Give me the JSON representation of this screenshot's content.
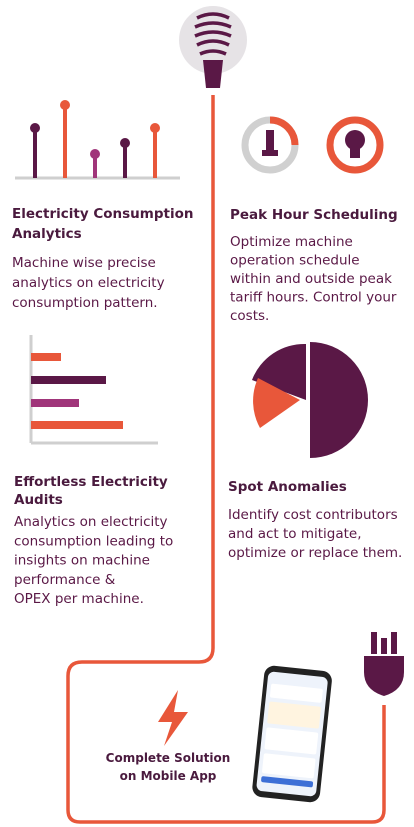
{
  "features": [
    {
      "title": [
        "Electricity Consumption",
        "Analytics"
      ],
      "description": [
        "Machine wise precise",
        "analytics on electricity",
        "consumption pattern."
      ]
    },
    {
      "title": [
        "Peak Hour Scheduling"
      ],
      "description": [
        "Optimize machine",
        "operation  schedule",
        "within and outside peak",
        "tariff hours. Control your",
        "costs."
      ]
    },
    {
      "title": [
        "Effortless Electricity",
        "Audits"
      ],
      "description": [
        "Analytics on electricity",
        "consumption leading to",
        "insights on machine",
        "performance &",
        "OPEX per machine."
      ]
    },
    {
      "title": [
        "Spot Anomalies"
      ],
      "description": [
        "Identify cost contributors",
        "and act to mitigate,",
        "optimize or replace them."
      ]
    }
  ],
  "mobile": {
    "title": [
      "Complete Solution",
      "on Mobile App"
    ]
  }
}
